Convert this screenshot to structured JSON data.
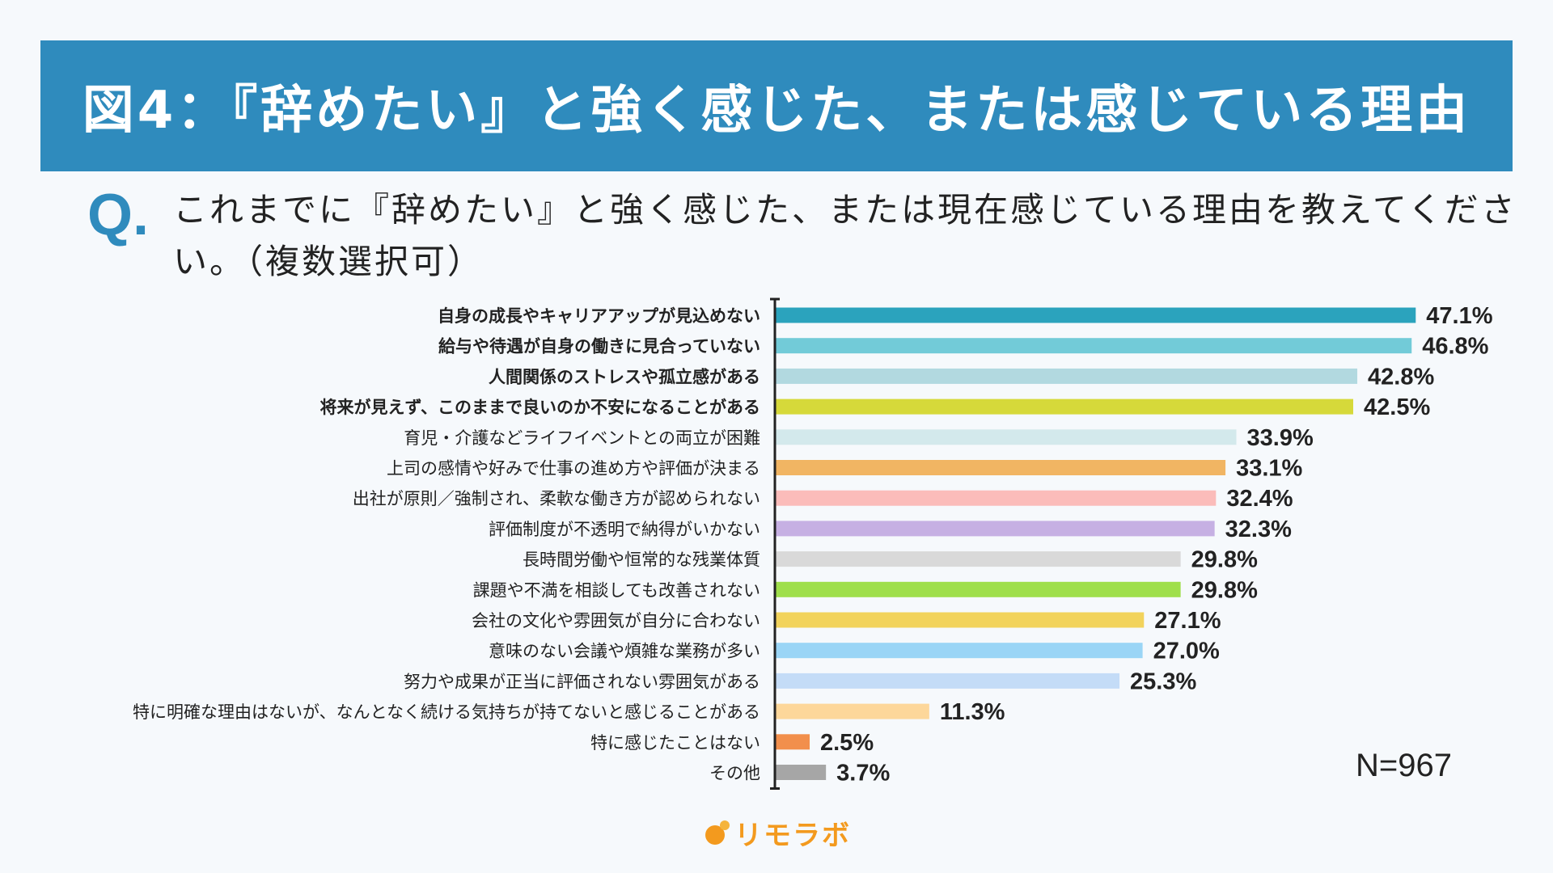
{
  "title": "図4：『辞めたい』と強く感じた、または感じている理由",
  "question": {
    "mark": "Q.",
    "text": "これまでに『辞めたい』と強く感じた、または現在感じている理由を教えてください。（複数選択可）"
  },
  "sample_size": "N=967",
  "logo": {
    "text": "リモラボ",
    "icon": "dots-icon",
    "color": "#f39a1e"
  },
  "chart_data": {
    "type": "bar",
    "orientation": "horizontal",
    "unit": "%",
    "xlim": [
      0,
      50
    ],
    "grid": false,
    "categories": [
      "自身の成長やキャリアアップが見込めない",
      "給与や待遇が自身の働きに見合っていない",
      "人間関係のストレスや孤立感がある",
      "将来が見えず、このままで良いのか不安になることがある",
      "育児・介護などライフイベントとの両立が困難",
      "上司の感情や好みで仕事の進め方や評価が決まる",
      "出社が原則／強制され、柔軟な働き方が認められない",
      "評価制度が不透明で納得がいかない",
      "長時間労働や恒常的な残業体質",
      "課題や不満を相談しても改善されない",
      "会社の文化や雰囲気が自分に合わない",
      "意味のない会議や煩雑な業務が多い",
      "努力や成果が正当に評価されない雰囲気がある",
      "特に明確な理由はないが、なんとなく続ける気持ちが持てないと感じることがある",
      "特に感じたことはない",
      "その他"
    ],
    "values": [
      47.1,
      46.8,
      42.8,
      42.5,
      33.9,
      33.1,
      32.4,
      32.3,
      29.8,
      29.8,
      27.1,
      27.0,
      25.3,
      11.3,
      2.5,
      3.7
    ],
    "value_labels": [
      "47.1%",
      "46.8%",
      "42.8%",
      "42.5%",
      "33.9%",
      "33.1%",
      "32.4%",
      "32.3%",
      "29.8%",
      "29.8%",
      "27.1%",
      "27.0%",
      "25.3%",
      "11.3%",
      "2.5%",
      "3.7%"
    ],
    "bold": [
      true,
      true,
      true,
      true,
      false,
      false,
      false,
      false,
      false,
      false,
      false,
      false,
      false,
      false,
      false,
      false
    ],
    "colors": [
      "#2ba3bd",
      "#72cbd8",
      "#b2d9e0",
      "#d6d93a",
      "#d3e9ec",
      "#f1b563",
      "#fbbcba",
      "#c6b0e3",
      "#d9d9d9",
      "#9fdf4b",
      "#f2d35c",
      "#9ad5f6",
      "#c4dcf7",
      "#fdd79a",
      "#f28f4c",
      "#a6a6a6"
    ]
  }
}
